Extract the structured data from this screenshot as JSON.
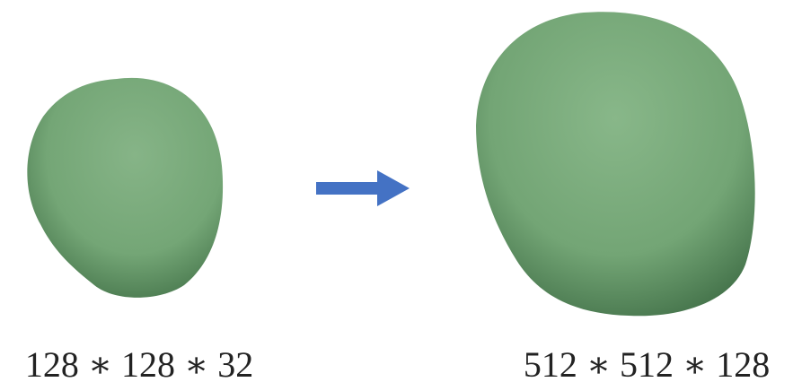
{
  "volumes": [
    {
      "label": "128 ∗ 128 ∗ 32"
    },
    {
      "label": "512 ∗ 512 ∗ 128"
    }
  ]
}
